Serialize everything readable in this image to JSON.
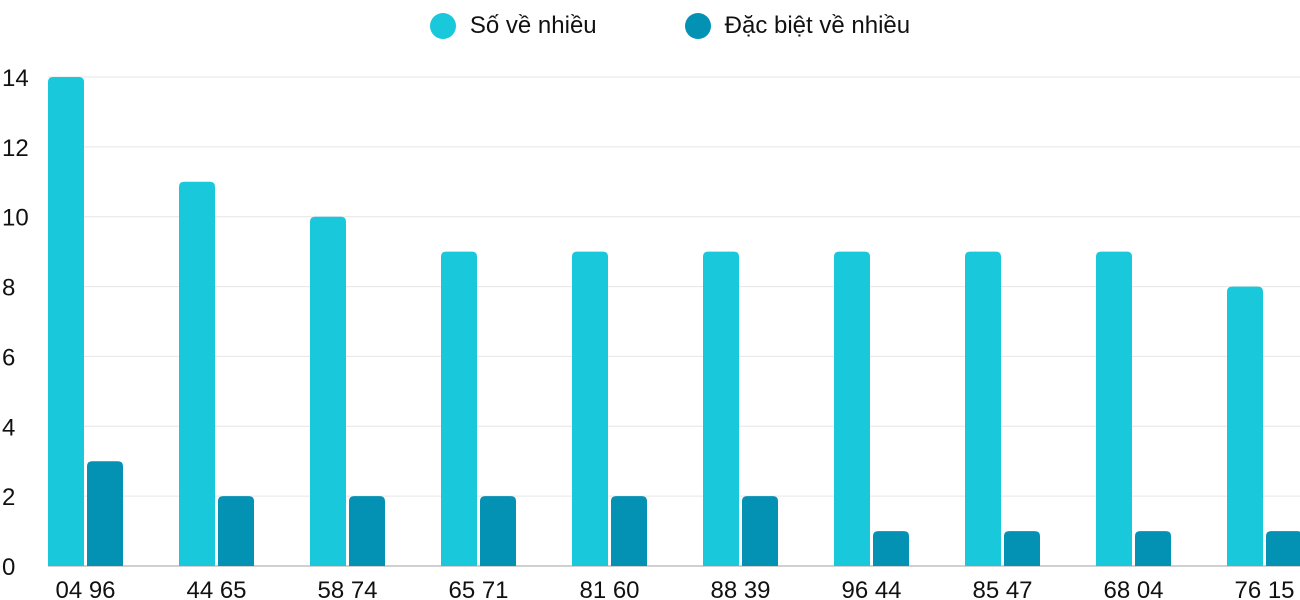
{
  "chart_data": {
    "type": "bar",
    "title": "",
    "xlabel": "",
    "ylabel": "",
    "categories": [
      "04 96",
      "44 65",
      "58 74",
      "65 71",
      "81 60",
      "88 39",
      "96 44",
      "85 47",
      "68 04",
      "76 15"
    ],
    "series": [
      {
        "name": "Số về nhiều",
        "color": "#1AC8DB",
        "values": [
          14,
          11,
          10,
          9,
          9,
          9,
          9,
          9,
          9,
          8
        ]
      },
      {
        "name": "Đặc biệt về nhiều",
        "color": "#0391B4",
        "values": [
          3,
          2,
          2,
          2,
          2,
          2,
          1,
          1,
          1,
          1
        ]
      }
    ],
    "ylim": [
      0,
      14
    ],
    "yticks": [
      0,
      2,
      4,
      6,
      8,
      10,
      12,
      14
    ],
    "grid": true,
    "legend_position": "top"
  }
}
